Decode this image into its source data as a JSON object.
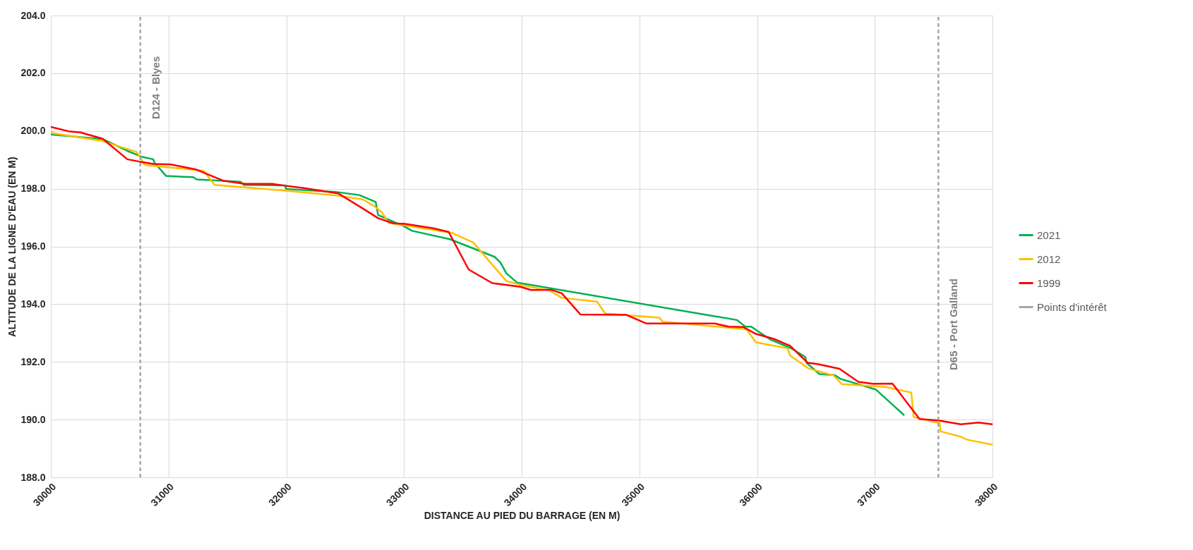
{
  "chart_data": {
    "type": "line",
    "xlabel": "DISTANCE AU PIED DU BARRAGE (EN M)",
    "ylabel": "ALTITUDE DE LA LIGNE D'EAU (EN M)",
    "xlim": [
      30000,
      38000
    ],
    "xticks": [
      30000,
      31000,
      32000,
      33000,
      34000,
      35000,
      36000,
      37000,
      38000
    ],
    "ylim": [
      188,
      204
    ],
    "yticks": [
      {
        "value": 188,
        "label": "188.0"
      },
      {
        "value": 190,
        "label": "190.0"
      },
      {
        "value": 192,
        "label": "192.0"
      },
      {
        "value": 194,
        "label": "194.0"
      },
      {
        "value": 196,
        "label": "196.0"
      },
      {
        "value": 198,
        "label": "198.0"
      },
      {
        "value": 200,
        "label": "200.0"
      },
      {
        "value": 202,
        "label": "202.0"
      },
      {
        "value": 204,
        "label": "204.0"
      }
    ],
    "grid": true,
    "legend": "right",
    "marker": "none",
    "series": [
      {
        "name": "2021",
        "color": "#00b050",
        "line_style": "solid",
        "x": [
          30000,
          30440,
          30650,
          30770,
          30870,
          30880,
          30980,
          31210,
          31240,
          31610,
          31640,
          31990,
          32000,
          32420,
          32620,
          32760,
          32780,
          33000,
          33070,
          33390,
          33770,
          33820,
          33870,
          33960,
          35830,
          35900,
          35950,
          36110,
          36290,
          36410,
          36420,
          36530,
          36660,
          36710,
          37010,
          37250
        ],
        "values": [
          199.88,
          199.72,
          199.31,
          199.11,
          199.02,
          198.9,
          198.44,
          198.4,
          198.32,
          198.24,
          198.13,
          198.11,
          197.99,
          197.89,
          197.78,
          197.54,
          197.09,
          196.7,
          196.54,
          196.25,
          195.64,
          195.44,
          195.07,
          194.75,
          193.45,
          193.22,
          193.22,
          192.78,
          192.47,
          192.17,
          191.97,
          191.58,
          191.54,
          191.41,
          191.04,
          190.15
        ]
      },
      {
        "name": "2012",
        "color": "#ffc000",
        "line_style": "solid",
        "x": [
          30000,
          30020,
          30440,
          30730,
          30800,
          31300,
          31390,
          32000,
          32440,
          32650,
          32750,
          32810,
          32870,
          33410,
          33590,
          33870,
          33990,
          34240,
          34340,
          34640,
          34710,
          34890,
          35170,
          35200,
          35910,
          35990,
          36260,
          36280,
          36440,
          36650,
          36720,
          37090,
          37310,
          37330,
          37550,
          37560,
          37730,
          37780,
          38000
        ],
        "values": [
          200.0,
          199.92,
          199.65,
          199.27,
          198.82,
          198.62,
          198.13,
          197.93,
          197.76,
          197.63,
          197.39,
          197.19,
          196.82,
          196.47,
          196.13,
          194.8,
          194.67,
          194.47,
          194.22,
          194.09,
          193.68,
          193.62,
          193.53,
          193.39,
          193.13,
          192.68,
          192.47,
          192.22,
          191.77,
          191.53,
          191.23,
          191.13,
          190.94,
          190.09,
          189.88,
          189.59,
          189.41,
          189.31,
          189.13
        ]
      },
      {
        "name": "1999",
        "color": "#ff0000",
        "line_style": "solid",
        "x": [
          30000,
          30150,
          30250,
          30440,
          30650,
          30750,
          30870,
          31020,
          31230,
          31470,
          31650,
          31880,
          31980,
          32140,
          32440,
          32640,
          32780,
          32910,
          33010,
          33250,
          33380,
          33550,
          33750,
          33990,
          34080,
          34250,
          34340,
          34500,
          34890,
          35060,
          35640,
          35760,
          35880,
          35990,
          36140,
          36280,
          36430,
          36520,
          36700,
          36860,
          36980,
          37150,
          37380,
          37540,
          37730,
          37880,
          38000
        ],
        "values": [
          200.14,
          199.99,
          199.95,
          199.73,
          199.02,
          198.94,
          198.86,
          198.84,
          198.67,
          198.27,
          198.17,
          198.17,
          198.11,
          198.03,
          197.84,
          197.34,
          196.98,
          196.8,
          196.78,
          196.63,
          196.5,
          195.2,
          194.73,
          194.6,
          194.49,
          194.5,
          194.38,
          193.64,
          193.63,
          193.33,
          193.33,
          193.22,
          193.21,
          192.97,
          192.8,
          192.56,
          191.97,
          191.92,
          191.76,
          191.31,
          191.24,
          191.25,
          190.02,
          189.97,
          189.84,
          189.9,
          189.84
        ]
      },
      {
        "name": "Points d'intérêt",
        "color": "#a6a6a6",
        "line_style": "dashed",
        "x": [
          30760,
          30760,
          null,
          37540,
          37540
        ],
        "values": [
          188,
          204,
          null,
          188,
          204
        ]
      }
    ],
    "annotations": [
      {
        "text": "D124 - Blyes",
        "x": 30760,
        "y": 201.5
      },
      {
        "text": "D65 - Port Galland",
        "x": 37540,
        "y": 193.3
      }
    ]
  }
}
